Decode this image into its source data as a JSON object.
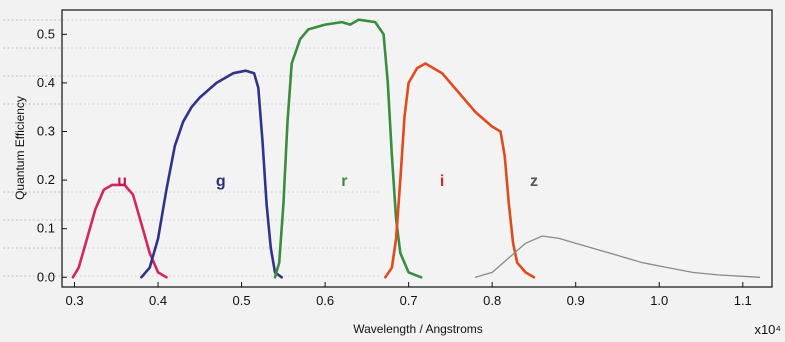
{
  "chart_data": {
    "type": "line",
    "title": "",
    "xlabel": "Wavelength / Angstroms",
    "ylabel": "Quantum Efficiency",
    "x_multiplier": "x10⁴",
    "xlim": [
      0.285,
      1.135
    ],
    "ylim": [
      -0.02,
      0.55
    ],
    "xticks": [
      0.3,
      0.4,
      0.5,
      0.6,
      0.7,
      0.8,
      0.9,
      1.0,
      1.1
    ],
    "xtick_labels": [
      "0.3",
      "0.4",
      "0.5",
      "0.6",
      "0.7",
      "0.8",
      "0.9",
      "1.0",
      "1.1"
    ],
    "yticks": [
      0.0,
      0.1,
      0.2,
      0.3,
      0.4,
      0.5
    ],
    "ytick_labels": [
      "0.0",
      "0.1",
      "0.2",
      "0.3",
      "0.4",
      "0.5"
    ],
    "grid": false,
    "legend": "none",
    "series": [
      {
        "name": "u",
        "color": "#d6245e",
        "x": [
          0.298,
          0.305,
          0.315,
          0.325,
          0.335,
          0.345,
          0.36,
          0.37,
          0.38,
          0.39,
          0.4,
          0.41
        ],
        "y": [
          0.0,
          0.02,
          0.08,
          0.14,
          0.18,
          0.19,
          0.19,
          0.17,
          0.11,
          0.05,
          0.01,
          0.0
        ]
      },
      {
        "name": "g",
        "color": "#30338a",
        "x": [
          0.38,
          0.39,
          0.4,
          0.41,
          0.42,
          0.43,
          0.44,
          0.45,
          0.47,
          0.49,
          0.505,
          0.515,
          0.52,
          0.525,
          0.53,
          0.535,
          0.54,
          0.548
        ],
        "y": [
          0.0,
          0.02,
          0.08,
          0.18,
          0.27,
          0.32,
          0.35,
          0.37,
          0.4,
          0.42,
          0.425,
          0.42,
          0.39,
          0.28,
          0.15,
          0.06,
          0.01,
          0.0
        ]
      },
      {
        "name": "r",
        "color": "#3a8c3f",
        "x": [
          0.54,
          0.545,
          0.55,
          0.555,
          0.56,
          0.57,
          0.58,
          0.6,
          0.62,
          0.63,
          0.64,
          0.66,
          0.67,
          0.675,
          0.68,
          0.685,
          0.69,
          0.7,
          0.715
        ],
        "y": [
          0.0,
          0.03,
          0.15,
          0.32,
          0.44,
          0.49,
          0.51,
          0.52,
          0.525,
          0.52,
          0.53,
          0.525,
          0.5,
          0.4,
          0.25,
          0.12,
          0.05,
          0.01,
          0.0
        ]
      },
      {
        "name": "i",
        "color": "#e04a1c",
        "x": [
          0.672,
          0.68,
          0.685,
          0.69,
          0.695,
          0.7,
          0.71,
          0.72,
          0.74,
          0.76,
          0.78,
          0.8,
          0.81,
          0.815,
          0.82,
          0.825,
          0.83,
          0.84,
          0.85
        ],
        "y": [
          0.0,
          0.02,
          0.08,
          0.2,
          0.33,
          0.4,
          0.43,
          0.44,
          0.42,
          0.38,
          0.34,
          0.31,
          0.3,
          0.25,
          0.15,
          0.07,
          0.03,
          0.01,
          0.0
        ]
      },
      {
        "name": "z",
        "color": "#8a8a8a",
        "x": [
          0.78,
          0.8,
          0.82,
          0.84,
          0.86,
          0.88,
          0.9,
          0.92,
          0.95,
          0.98,
          1.01,
          1.04,
          1.07,
          1.1,
          1.12
        ],
        "y": [
          0.0,
          0.01,
          0.04,
          0.07,
          0.085,
          0.08,
          0.07,
          0.06,
          0.045,
          0.03,
          0.02,
          0.01,
          0.005,
          0.002,
          0.0
        ]
      }
    ],
    "band_labels": [
      {
        "text": "u",
        "x": 0.357,
        "y": 0.2,
        "color": "#c2185b"
      },
      {
        "text": "g",
        "x": 0.475,
        "y": 0.2,
        "color": "#2c2f7a"
      },
      {
        "text": "r",
        "x": 0.623,
        "y": 0.2,
        "color": "#3a8c3f"
      },
      {
        "text": "i",
        "x": 0.74,
        "y": 0.2,
        "color": "#d92626"
      },
      {
        "text": "z",
        "x": 0.85,
        "y": 0.2,
        "color": "#555555"
      }
    ]
  }
}
